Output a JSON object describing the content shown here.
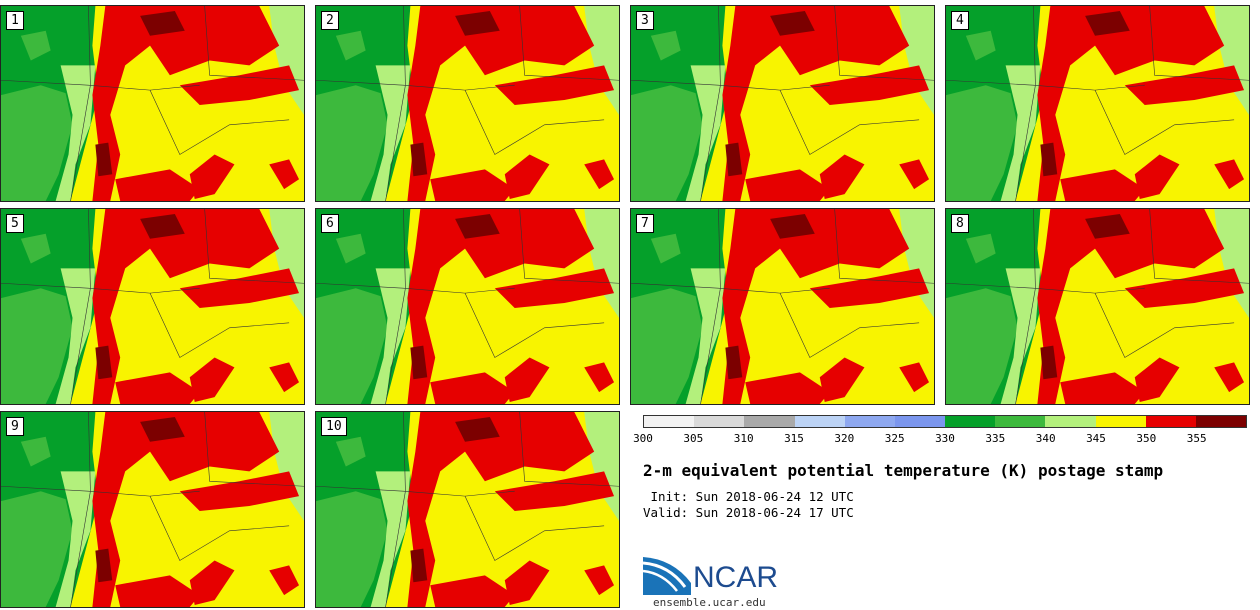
{
  "panels": [
    {
      "label": "1"
    },
    {
      "label": "2"
    },
    {
      "label": "3"
    },
    {
      "label": "4"
    },
    {
      "label": "5"
    },
    {
      "label": "6"
    },
    {
      "label": "7"
    },
    {
      "label": "8"
    },
    {
      "label": "9"
    },
    {
      "label": "10"
    }
  ],
  "colorbar": {
    "colors": [
      "#f2f2f2",
      "#d9d9d9",
      "#a9a9a9",
      "#bcd3f5",
      "#8ea8f0",
      "#7b96ee",
      "#05a02a",
      "#3db93d",
      "#b3f07c",
      "#f8f400",
      "#e60000",
      "#7c0000"
    ],
    "ticks": [
      "300",
      "305",
      "310",
      "315",
      "320",
      "325",
      "330",
      "335",
      "340",
      "345",
      "350",
      "355"
    ]
  },
  "title": "2-m equivalent potential temperature (K) postage stamp",
  "init": " Init: Sun 2018-06-24 12 UTC",
  "valid": "Valid: Sun 2018-06-24 17 UTC",
  "logo": {
    "text": "NCAR",
    "site": "ensemble.ucar.edu"
  }
}
